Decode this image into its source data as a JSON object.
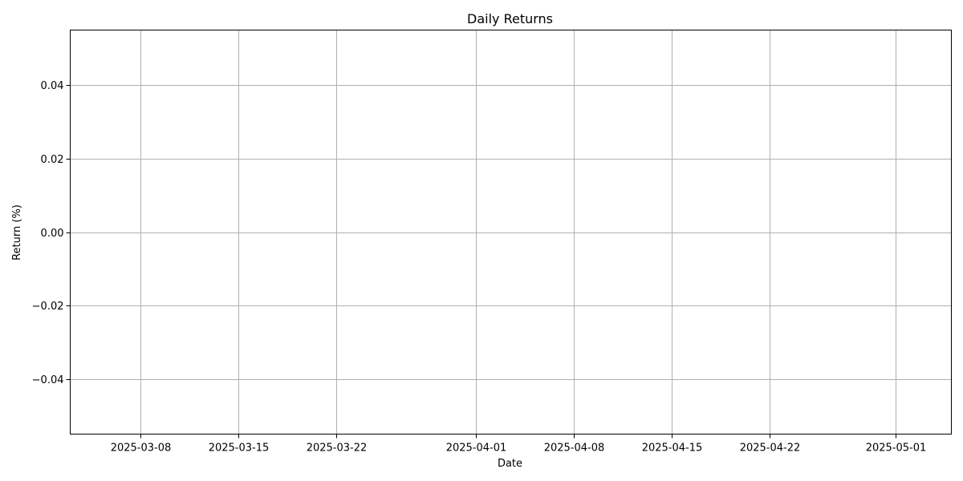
{
  "chart_data": {
    "type": "line",
    "title": "Daily Returns",
    "xlabel": "Date",
    "ylabel": "Return (%)",
    "x_axis": {
      "kind": "date",
      "range": [
        "2025-03-03",
        "2025-05-05"
      ],
      "ticks": [
        "2025-03-08",
        "2025-03-15",
        "2025-03-22",
        "2025-04-01",
        "2025-04-08",
        "2025-04-15",
        "2025-04-22",
        "2025-05-01"
      ]
    },
    "y_axis": {
      "ylim": [
        -0.055,
        0.055
      ],
      "ticks": [
        0.04,
        0.02,
        0.0,
        -0.02,
        -0.04
      ],
      "tick_labels": [
        "0.04",
        "0.02",
        "0.00",
        "−0.02",
        "−0.04"
      ]
    },
    "grid": true,
    "series": [],
    "colors": {
      "grid": "#b0b0b0",
      "axes": "#000000",
      "background": "#ffffff"
    }
  }
}
